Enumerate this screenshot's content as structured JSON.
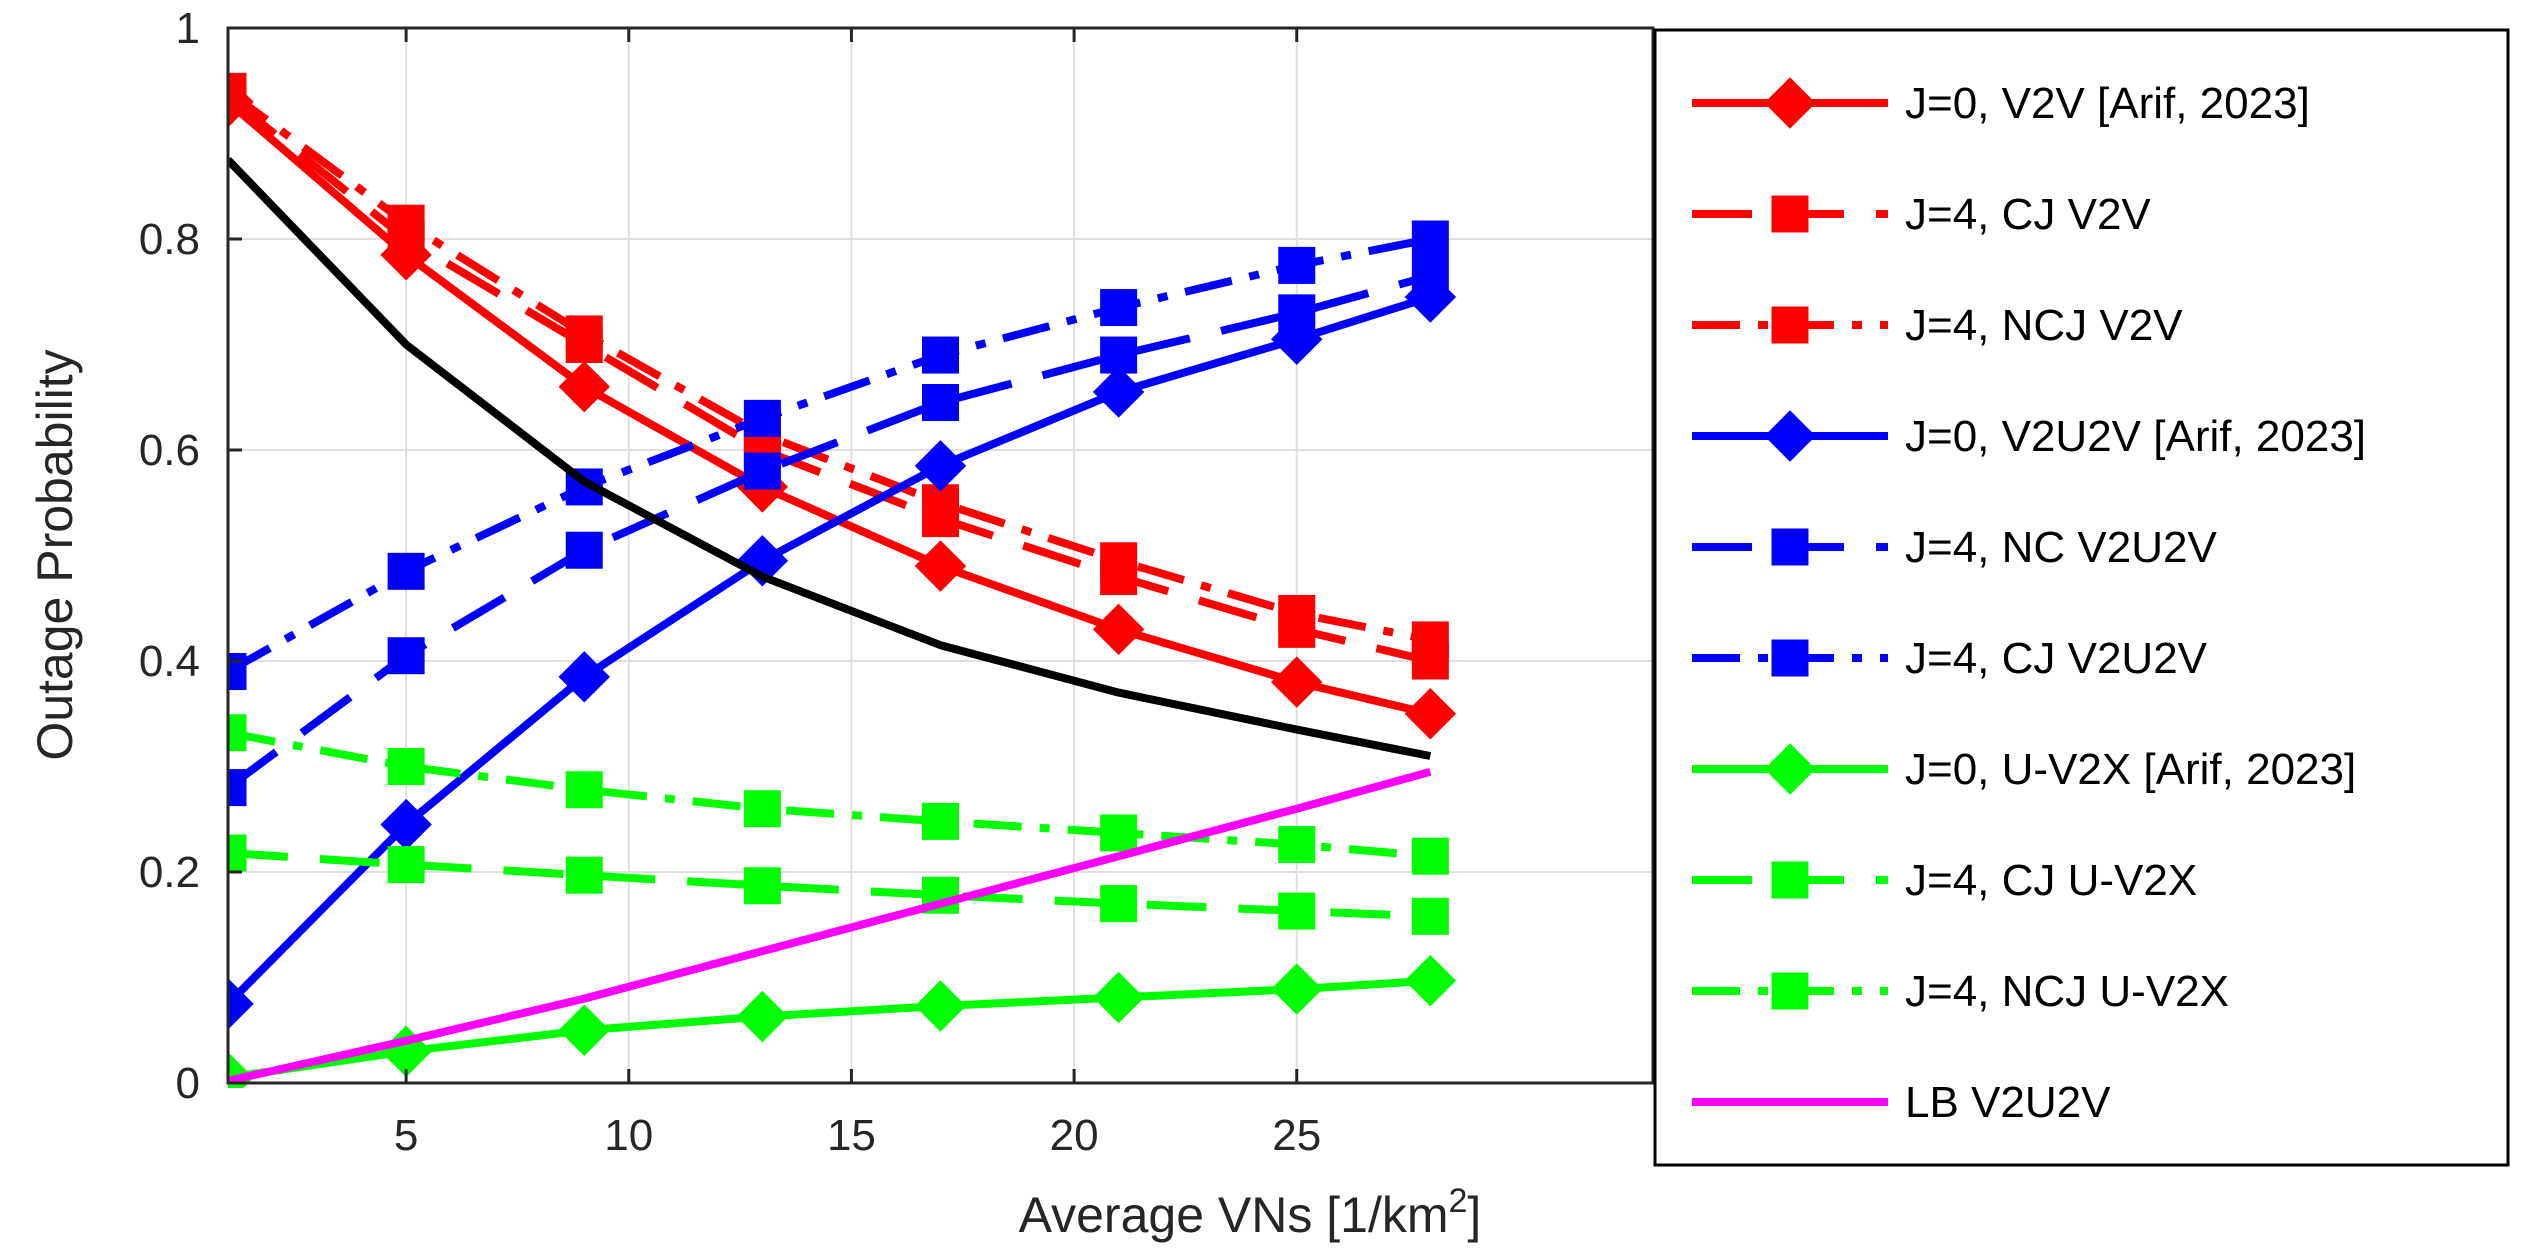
{
  "chart_data": {
    "type": "line",
    "title": "",
    "xlabel": "Average VNs [1/km",
    "xlabel_superscript": "2",
    "xlabel_suffix": "]",
    "ylabel": "Outage Probability",
    "xlim": [
      1,
      33
    ],
    "ylim": [
      0,
      1
    ],
    "xticks": [
      5,
      10,
      15,
      20,
      25
    ],
    "xtick_labels": [
      "5",
      "10",
      "15",
      "20",
      "25"
    ],
    "yticks": [
      0,
      0.2,
      0.4,
      0.6,
      0.8,
      1
    ],
    "ytick_labels": [
      "0",
      "0.2",
      "0.4",
      "0.6",
      "0.8",
      "1"
    ],
    "grid": true,
    "legend_position": "right, overlapping plot",
    "series": [
      {
        "name": "J=0, V2V [Arif, 2023]",
        "color": "#ff0000",
        "dash": "solid",
        "marker": "diamond",
        "x": [
          1,
          5,
          9,
          13,
          17,
          21,
          25,
          28
        ],
        "y": [
          0.93,
          0.785,
          0.66,
          0.565,
          0.49,
          0.43,
          0.38,
          0.35
        ]
      },
      {
        "name": "J=4, CJ V2V",
        "color": "#ff0000",
        "dash": "dashed",
        "marker": "square",
        "x": [
          1,
          5,
          9,
          13,
          17,
          21,
          25,
          28
        ],
        "y": [
          0.935,
          0.8,
          0.7,
          0.6,
          0.535,
          0.48,
          0.43,
          0.4
        ]
      },
      {
        "name": "J=4, NCJ V2V",
        "color": "#ff0000",
        "dash": "dashdot",
        "marker": "square",
        "x": [
          1,
          5,
          9,
          13,
          17,
          21,
          25,
          28
        ],
        "y": [
          0.94,
          0.815,
          0.71,
          0.615,
          0.55,
          0.495,
          0.445,
          0.42
        ]
      },
      {
        "name": "J=0, V2U2V [Arif, 2023]",
        "color": "#0000ff",
        "dash": "solid",
        "marker": "diamond",
        "x": [
          1,
          5,
          9,
          13,
          17,
          21,
          25,
          28
        ],
        "y": [
          0.075,
          0.245,
          0.385,
          0.495,
          0.585,
          0.655,
          0.705,
          0.745
        ]
      },
      {
        "name": "J=4, NC V2U2V",
        "color": "#0000ff",
        "dash": "dashed",
        "marker": "square",
        "x": [
          1,
          5,
          9,
          13,
          17,
          21,
          25,
          28
        ],
        "y": [
          0.28,
          0.405,
          0.505,
          0.58,
          0.645,
          0.69,
          0.73,
          0.765
        ]
      },
      {
        "name": "J=4, CJ V2U2V",
        "color": "#0000ff",
        "dash": "dashdot",
        "marker": "square",
        "x": [
          1,
          5,
          9,
          13,
          17,
          21,
          25,
          28
        ],
        "y": [
          0.39,
          0.485,
          0.565,
          0.63,
          0.69,
          0.735,
          0.775,
          0.8
        ]
      },
      {
        "name": "J=0, U-V2X [Arif, 2023]",
        "color": "#00ff00",
        "dash": "solid",
        "marker": "diamond",
        "x": [
          1,
          5,
          9,
          13,
          17,
          21,
          25,
          28
        ],
        "y": [
          0.005,
          0.03,
          0.05,
          0.063,
          0.073,
          0.081,
          0.089,
          0.097
        ]
      },
      {
        "name": "J=4, CJ U-V2X",
        "color": "#00ff00",
        "dash": "dashed",
        "marker": "square",
        "x": [
          1,
          5,
          9,
          13,
          17,
          21,
          25,
          28
        ],
        "y": [
          0.218,
          0.207,
          0.197,
          0.187,
          0.178,
          0.17,
          0.163,
          0.158
        ]
      },
      {
        "name": "J=4, NCJ U-V2X",
        "color": "#00ff00",
        "dash": "dashdot",
        "marker": "square",
        "x": [
          1,
          5,
          9,
          13,
          17,
          21,
          25,
          28
        ],
        "y": [
          0.332,
          0.3,
          0.278,
          0.26,
          0.248,
          0.237,
          0.226,
          0.215
        ]
      },
      {
        "name": "LB V2U2V",
        "color": "#ff00ff",
        "dash": "solid",
        "marker": "none",
        "x": [
          1,
          5,
          9,
          13,
          17,
          21,
          25,
          28
        ],
        "y": [
          0.002,
          0.04,
          0.08,
          0.125,
          0.17,
          0.215,
          0.26,
          0.295
        ]
      },
      {
        "name": "",
        "color": "#000000",
        "dash": "solid",
        "marker": "none",
        "in_legend": false,
        "x": [
          1,
          5,
          9,
          13,
          17,
          21,
          25,
          28
        ],
        "y": [
          0.875,
          0.7,
          0.57,
          0.48,
          0.415,
          0.37,
          0.335,
          0.31
        ]
      }
    ]
  }
}
